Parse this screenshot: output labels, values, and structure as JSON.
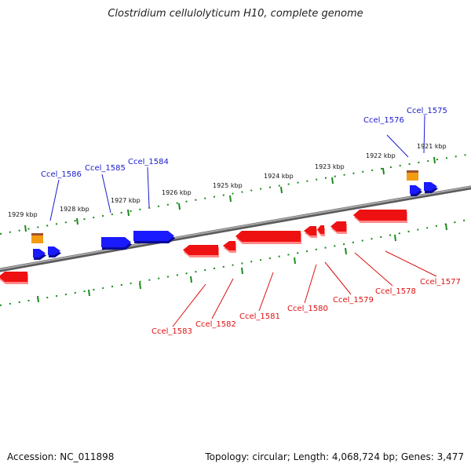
{
  "header": {
    "title": "Clostridium cellulolyticum H10, complete genome"
  },
  "footer": {
    "accession": "Accession: NC_011898",
    "summary": "Topology: circular; Length: 4,068,724 bp; Genes: 3,477"
  },
  "colors": {
    "forward_gene": "#1a1aff",
    "reverse_gene": "#ee1111",
    "other_feature": "#f39c12",
    "backbone": "#808080",
    "ticks": "#1a8a1a",
    "forward_label": "#1a1acc",
    "reverse_label": "#dd1111"
  },
  "scale_labels": [
    "1921 kbp",
    "1922 kbp",
    "1923 kbp",
    "1924 kbp",
    "1925 kbp",
    "1926 kbp",
    "1927 kbp",
    "1928 kbp",
    "1929 kbp"
  ],
  "genes": {
    "forward": [
      "Ccel_1575",
      "Ccel_1576",
      "Ccel_1584",
      "Ccel_1585",
      "Ccel_1586"
    ],
    "reverse": [
      "Ccel_1577",
      "Ccel_1578",
      "Ccel_1579",
      "Ccel_1580",
      "Ccel_1581",
      "Ccel_1582",
      "Ccel_1583"
    ]
  }
}
